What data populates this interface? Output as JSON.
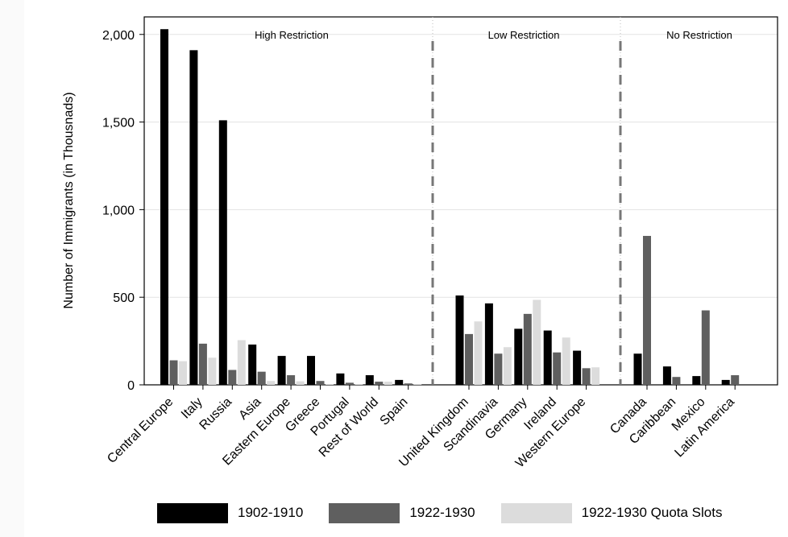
{
  "chart_data": {
    "type": "bar",
    "ylabel": "Number of Immigrants (in Thousnads)",
    "ylim": [
      0,
      2100
    ],
    "yticks": [
      0,
      500,
      1000,
      1500,
      2000
    ],
    "ytick_labels": [
      "0",
      "500",
      "1,000",
      "1,500",
      "2,000"
    ],
    "grid": true,
    "legend_position": "bottom",
    "colors": [
      "#000000",
      "#5f5f5f",
      "#dcdcdc"
    ],
    "series": [
      {
        "name": "1902-1910",
        "values": [
          2030,
          1910,
          1510,
          230,
          165,
          165,
          65,
          55,
          28,
          510,
          465,
          320,
          310,
          195,
          178,
          105,
          50,
          28
        ]
      },
      {
        "name": "1922-1930",
        "values": [
          140,
          235,
          85,
          75,
          55,
          22,
          12,
          18,
          8,
          290,
          178,
          405,
          185,
          95,
          850,
          45,
          425,
          55
        ]
      },
      {
        "name": "1922-1930 Quota Slots",
        "values": [
          135,
          155,
          255,
          22,
          20,
          5,
          5,
          18,
          4,
          362,
          215,
          485,
          270,
          100,
          0,
          0,
          0,
          0
        ]
      }
    ],
    "groups": [
      {
        "name": "High Restriction",
        "categories": [
          "Central Europe",
          "Italy",
          "Russia",
          "Asia",
          "Eastern Europe",
          "Greece",
          "Portugal",
          "Rest of World",
          "Spain"
        ]
      },
      {
        "name": "Low Restriction",
        "categories": [
          "United Kingdom",
          "Scandinavia",
          "Germany",
          "Ireland",
          "Western Europe"
        ]
      },
      {
        "name": "No Restriction",
        "categories": [
          "Canada",
          "Caribbean",
          "Mexico",
          "Latin America"
        ]
      }
    ]
  }
}
